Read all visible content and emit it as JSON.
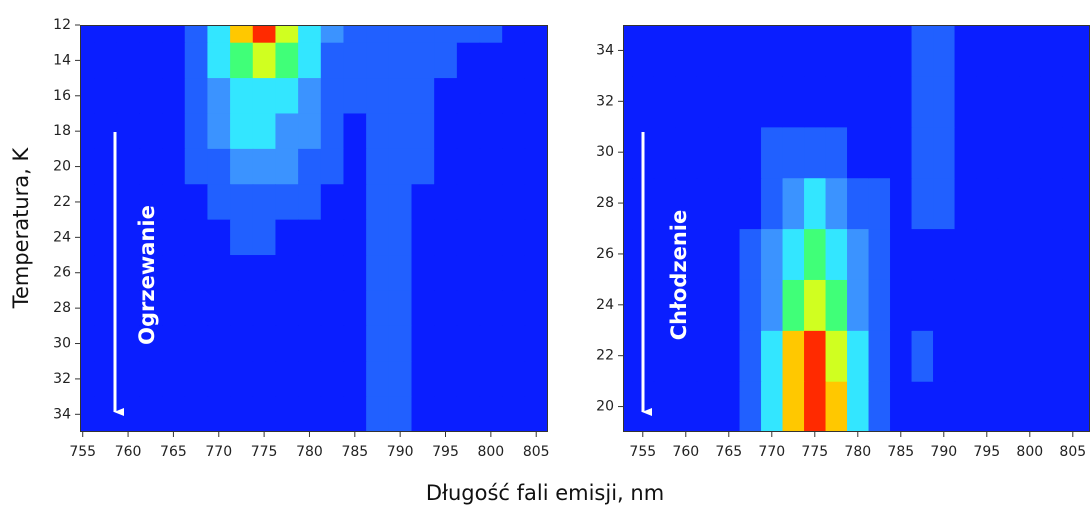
{
  "colors": [
    "#0a1eff",
    "#2160ff",
    "#3b93ff",
    "#33e6ff",
    "#40ff78",
    "#d0ff20",
    "#ffc800",
    "#ff2a00"
  ],
  "xlabel": "Długość fali emisji,  nm",
  "ylabel": "Temperatura, K",
  "chart_data": [
    {
      "type": "heatmap",
      "annotation": "Ogrzewanie",
      "x": [
        755,
        757.5,
        760,
        762.5,
        765,
        767.5,
        770,
        772.5,
        775,
        777.5,
        780,
        782.5,
        785,
        787.5,
        790,
        792.5,
        795,
        797.5,
        800,
        802.5,
        805
      ],
      "y": [
        12,
        14,
        16,
        18,
        20,
        22,
        24,
        26,
        28,
        30,
        32,
        34
      ],
      "z": [
        [
          0,
          0,
          0,
          0,
          0,
          1,
          3,
          6,
          7,
          5,
          3,
          2,
          1,
          1,
          1,
          1,
          1,
          1,
          1,
          0,
          0
        ],
        [
          0,
          0,
          0,
          0,
          0,
          1,
          3,
          4,
          5,
          4,
          3,
          1,
          1,
          1,
          1,
          1,
          1,
          0,
          0,
          0,
          0
        ],
        [
          0,
          0,
          0,
          0,
          0,
          1,
          2,
          3,
          3,
          3,
          2,
          1,
          1,
          1,
          1,
          1,
          0,
          0,
          0,
          0,
          0
        ],
        [
          0,
          0,
          0,
          0,
          0,
          1,
          2,
          3,
          3,
          2,
          2,
          1,
          0,
          1,
          1,
          1,
          0,
          0,
          0,
          0,
          0
        ],
        [
          0,
          0,
          0,
          0,
          0,
          1,
          1,
          2,
          2,
          2,
          1,
          1,
          0,
          1,
          1,
          1,
          0,
          0,
          0,
          0,
          0
        ],
        [
          0,
          0,
          0,
          0,
          0,
          0,
          1,
          1,
          1,
          1,
          1,
          0,
          0,
          1,
          1,
          0,
          0,
          0,
          0,
          0,
          0
        ],
        [
          0,
          0,
          0,
          0,
          0,
          0,
          0,
          1,
          1,
          0,
          0,
          0,
          0,
          1,
          1,
          0,
          0,
          0,
          0,
          0,
          0
        ],
        [
          0,
          0,
          0,
          0,
          0,
          0,
          0,
          0,
          0,
          0,
          0,
          0,
          0,
          1,
          1,
          0,
          0,
          0,
          0,
          0,
          0
        ],
        [
          0,
          0,
          0,
          0,
          0,
          0,
          0,
          0,
          0,
          0,
          0,
          0,
          0,
          1,
          1,
          0,
          0,
          0,
          0,
          0,
          0
        ],
        [
          0,
          0,
          0,
          0,
          0,
          0,
          0,
          0,
          0,
          0,
          0,
          0,
          0,
          1,
          1,
          0,
          0,
          0,
          0,
          0,
          0
        ],
        [
          0,
          0,
          0,
          0,
          0,
          0,
          0,
          0,
          0,
          0,
          0,
          0,
          0,
          1,
          1,
          0,
          0,
          0,
          0,
          0,
          0
        ],
        [
          0,
          0,
          0,
          0,
          0,
          0,
          0,
          0,
          0,
          0,
          0,
          0,
          0,
          1,
          1,
          0,
          0,
          0,
          0,
          0,
          0
        ]
      ],
      "xlim": [
        754.7,
        806.3
      ],
      "xticks": [
        755,
        760,
        765,
        770,
        775,
        780,
        785,
        790,
        795,
        800,
        805
      ],
      "ylim": [
        35,
        12
      ],
      "yticks": [
        12,
        14,
        16,
        18,
        20,
        22,
        24,
        26,
        28,
        30,
        32,
        34
      ]
    },
    {
      "type": "heatmap",
      "annotation": "Chłodzenie",
      "x": [
        755,
        757.5,
        760,
        762.5,
        765,
        767.5,
        770,
        772.5,
        775,
        777.5,
        780,
        782.5,
        785,
        787.5,
        790,
        792.5,
        795,
        797.5,
        800,
        802.5,
        805
      ],
      "y": [
        20,
        22,
        24,
        26,
        28,
        30,
        32,
        34
      ],
      "z": [
        [
          0,
          0,
          0,
          0,
          0,
          1,
          3,
          6,
          7,
          6,
          3,
          1,
          0,
          0,
          0,
          0,
          0,
          0,
          0,
          0,
          0
        ],
        [
          0,
          0,
          0,
          0,
          0,
          1,
          3,
          6,
          7,
          5,
          3,
          1,
          0,
          1,
          0,
          0,
          0,
          0,
          0,
          0,
          0
        ],
        [
          0,
          0,
          0,
          0,
          0,
          1,
          2,
          4,
          5,
          4,
          2,
          1,
          0,
          0,
          0,
          0,
          0,
          0,
          0,
          0,
          0
        ],
        [
          0,
          0,
          0,
          0,
          0,
          1,
          2,
          3,
          4,
          3,
          2,
          1,
          0,
          0,
          0,
          0,
          0,
          0,
          0,
          0,
          0
        ],
        [
          0,
          0,
          0,
          0,
          0,
          0,
          1,
          2,
          3,
          2,
          1,
          1,
          0,
          1,
          1,
          0,
          0,
          0,
          0,
          0,
          0
        ],
        [
          0,
          0,
          0,
          0,
          0,
          0,
          1,
          1,
          1,
          1,
          0,
          0,
          0,
          1,
          1,
          0,
          0,
          0,
          0,
          0,
          0
        ],
        [
          0,
          0,
          0,
          0,
          0,
          0,
          0,
          0,
          0,
          0,
          0,
          0,
          0,
          1,
          1,
          0,
          0,
          0,
          0,
          0,
          0
        ],
        [
          0,
          0,
          0,
          0,
          0,
          0,
          0,
          0,
          0,
          0,
          0,
          0,
          0,
          1,
          1,
          0,
          0,
          0,
          0,
          0,
          0
        ]
      ],
      "xlim": [
        752.7,
        807
      ],
      "xticks": [
        755,
        760,
        765,
        770,
        775,
        780,
        785,
        790,
        795,
        800,
        805
      ],
      "ylim": [
        19,
        35
      ],
      "yticks": [
        20,
        22,
        24,
        26,
        28,
        30,
        32,
        34
      ]
    }
  ]
}
